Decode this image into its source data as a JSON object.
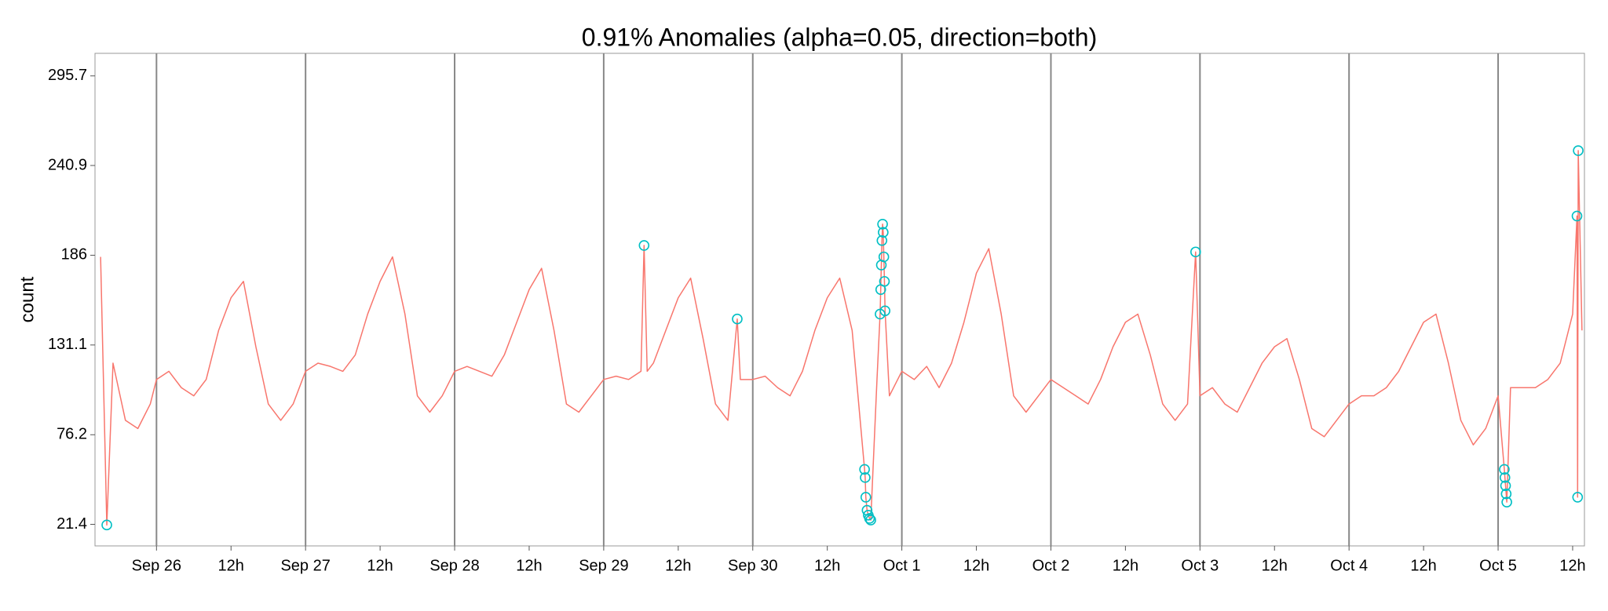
{
  "chart_data": {
    "type": "line",
    "title": "0.91% Anomalies (alpha=0.05, direction=both)",
    "ylabel": "count",
    "xlim": [
      -9.9,
      229.9
    ],
    "ylim": [
      8.2,
      309.5
    ],
    "yticks": [
      21.4,
      76.2,
      131.1,
      186,
      240.9,
      295.7
    ],
    "xticks": [
      {
        "value": 0,
        "label": "Sep 26"
      },
      {
        "value": 24,
        "label": "Sep 27"
      },
      {
        "value": 48,
        "label": "Sep 28"
      },
      {
        "value": 72,
        "label": "Sep 29"
      },
      {
        "value": 96,
        "label": "Sep 30"
      },
      {
        "value": 120,
        "label": "Oct 1"
      },
      {
        "value": 144,
        "label": "Oct 2"
      },
      {
        "value": 168,
        "label": "Oct 3"
      },
      {
        "value": 192,
        "label": "Oct 4"
      },
      {
        "value": 216,
        "label": "Oct 5"
      }
    ],
    "xticks_minor": [
      {
        "value": 12,
        "label": "12h"
      },
      {
        "value": 36,
        "label": "12h"
      },
      {
        "value": 60,
        "label": "12h"
      },
      {
        "value": 84,
        "label": "12h"
      },
      {
        "value": 108,
        "label": "12h"
      },
      {
        "value": 132,
        "label": "12h"
      },
      {
        "value": 156,
        "label": "12h"
      },
      {
        "value": 180,
        "label": "12h"
      },
      {
        "value": 204,
        "label": "12h"
      },
      {
        "value": 228,
        "label": "12h"
      }
    ],
    "grid": true,
    "series": [
      {
        "type": "line",
        "color": "#F8766D",
        "x": [
          -9,
          -8,
          -7,
          -5,
          -3,
          -1,
          0,
          2,
          4,
          6,
          8,
          10,
          12,
          14,
          16,
          18,
          20,
          22,
          24,
          26,
          28,
          30,
          32,
          34,
          36,
          38,
          40,
          42,
          44,
          46,
          48,
          50,
          52,
          54,
          56,
          58,
          60,
          62,
          64,
          66,
          68,
          70,
          72,
          74,
          76,
          78,
          78.5,
          79,
          80,
          82,
          84,
          86,
          88,
          90,
          92,
          93.5,
          94,
          96,
          98,
          100,
          102,
          104,
          106,
          108,
          110,
          112,
          114,
          114.1,
          114.2,
          114.4,
          114.6,
          114.8,
          115,
          116,
          116.5,
          116.6,
          116.7,
          116.8,
          116.9,
          117,
          117.1,
          117.2,
          117.3,
          118,
          120,
          122,
          124,
          126,
          128,
          130,
          132,
          134,
          136,
          138,
          140,
          142,
          144,
          146,
          148,
          150,
          152,
          154,
          156,
          158,
          160,
          162,
          164,
          166,
          167.3,
          168,
          170,
          172,
          174,
          176,
          178,
          180,
          182,
          184,
          186,
          188,
          190,
          192,
          194,
          196,
          198,
          200,
          202,
          204,
          206,
          208,
          210,
          212,
          214,
          216,
          217,
          217.1,
          217.2,
          217.3,
          217.4,
          218,
          220,
          222,
          224,
          226,
          228,
          228.7,
          228.8,
          228.9,
          229.5
        ],
        "values": [
          185,
          21,
          120,
          85,
          80,
          95,
          110,
          115,
          105,
          100,
          110,
          140,
          160,
          170,
          130,
          95,
          85,
          95,
          115,
          120,
          118,
          115,
          125,
          150,
          170,
          185,
          150,
          100,
          90,
          100,
          115,
          118,
          115,
          112,
          125,
          145,
          165,
          178,
          140,
          95,
          90,
          100,
          110,
          112,
          110,
          115,
          192,
          115,
          120,
          140,
          160,
          172,
          135,
          95,
          85,
          147,
          110,
          110,
          112,
          105,
          100,
          115,
          140,
          160,
          172,
          140,
          55,
          50,
          38,
          30,
          27,
          25,
          24,
          110,
          150,
          165,
          180,
          195,
          205,
          200,
          185,
          170,
          152,
          100,
          115,
          110,
          118,
          105,
          120,
          145,
          175,
          190,
          150,
          100,
          90,
          100,
          110,
          105,
          100,
          95,
          110,
          130,
          145,
          150,
          125,
          95,
          85,
          95,
          188,
          100,
          105,
          95,
          90,
          105,
          120,
          130,
          135,
          110,
          80,
          75,
          85,
          95,
          100,
          100,
          105,
          115,
          130,
          145,
          150,
          120,
          85,
          70,
          80,
          100,
          55,
          50,
          45,
          40,
          35,
          105,
          105,
          105,
          110,
          120,
          150,
          210,
          38,
          250,
          140
        ]
      },
      {
        "type": "scatter",
        "color": "#00BFC4",
        "x": [
          -8,
          78.5,
          93.5,
          114,
          114.1,
          114.2,
          114.4,
          114.6,
          114.8,
          115,
          116.5,
          116.6,
          116.7,
          116.8,
          116.9,
          117,
          117.1,
          117.2,
          117.3,
          167.3,
          217,
          217.1,
          217.2,
          217.3,
          217.4,
          228.7,
          228.8,
          228.9
        ],
        "values": [
          21,
          192,
          147,
          55,
          50,
          38,
          30,
          27,
          25,
          24,
          150,
          165,
          180,
          195,
          205,
          200,
          185,
          170,
          152,
          188,
          55,
          50,
          45,
          40,
          35,
          210,
          38,
          250
        ]
      }
    ]
  }
}
